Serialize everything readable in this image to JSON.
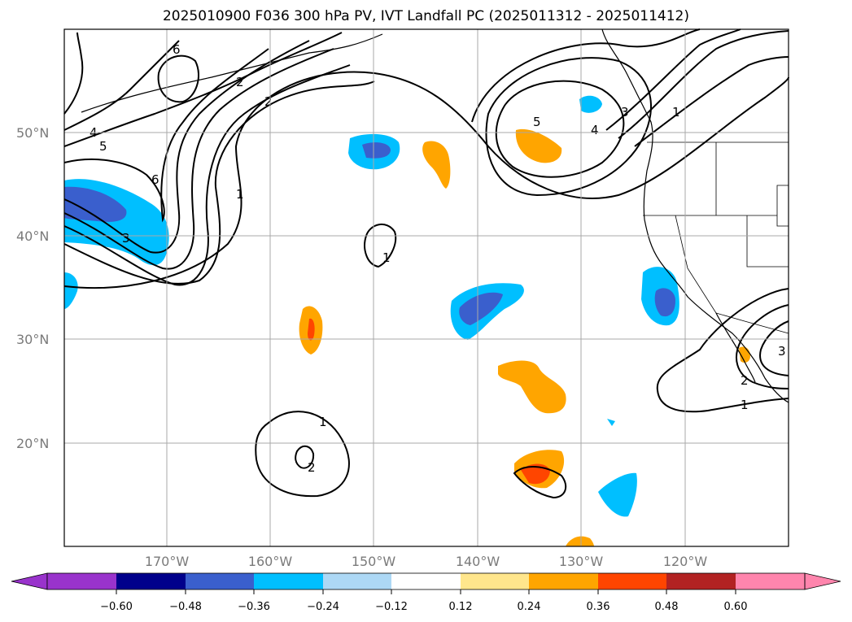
{
  "map": {
    "title": "2025010900 F036 300 hPa PV, IVT Landfall PC (2025011312 - 2025011412)",
    "lat_labels": [
      "50°N",
      "40°N",
      "30°N",
      "20°N"
    ],
    "lon_labels": [
      "170°W",
      "160°W",
      "150°W",
      "140°W",
      "130°W",
      "120°W"
    ],
    "contour_labels": [
      "6",
      "2",
      "5",
      "4",
      "6",
      "3",
      "2",
      "1",
      "5",
      "4",
      "3",
      "1",
      "1",
      "1",
      "2",
      "1",
      "2",
      "3"
    ]
  },
  "colorbar": {
    "ticks": [
      "−0.60",
      "−0.48",
      "−0.36",
      "−0.24",
      "−0.12",
      "0.12",
      "0.24",
      "0.36",
      "0.48",
      "0.60"
    ],
    "colors": [
      "#9933cc",
      "#00008b",
      "#3a5fcd",
      "#00bfff",
      "#add8f5",
      "#ffffff",
      "#ffe68c",
      "#ffa500",
      "#ff4500",
      "#b22222",
      "#ff85ad"
    ]
  },
  "legend_palette": {
    "neg_strong": "#3a5fcd",
    "neg_mid": "#00bfff",
    "neg_weak": "#add8f5",
    "pos_weak": "#ffe68c",
    "pos_mid": "#ffa500",
    "pos_strong": "#ff4500"
  }
}
